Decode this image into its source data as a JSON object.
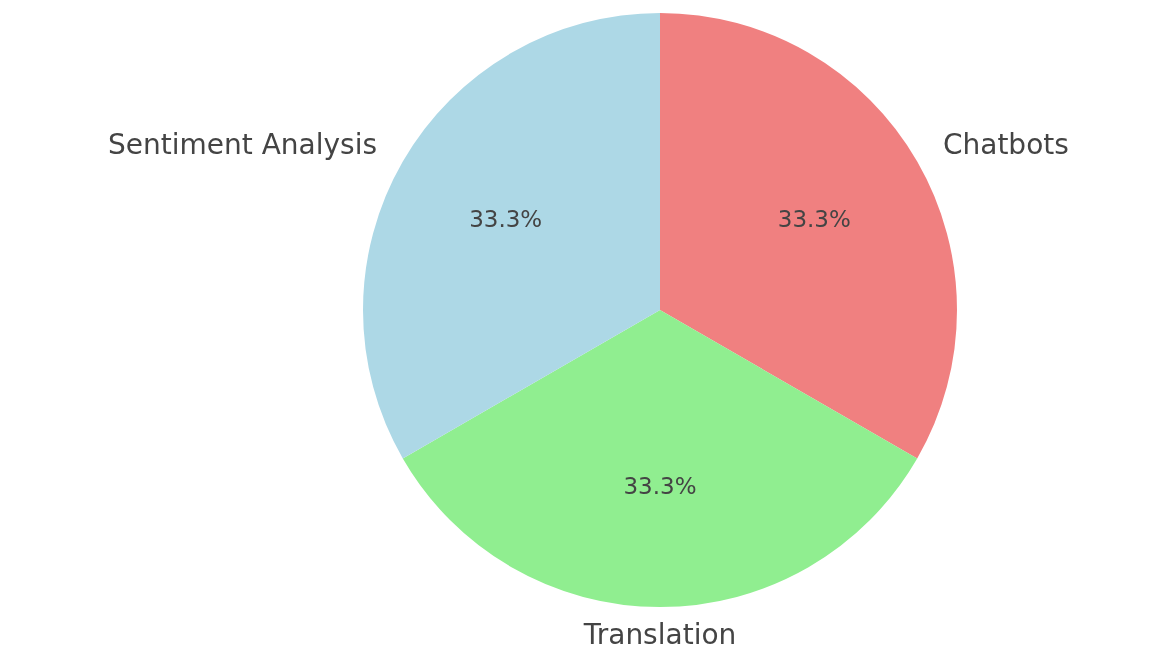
{
  "chart_data": {
    "type": "pie",
    "categories": [
      "Chatbots",
      "Translation",
      "Sentiment Analysis"
    ],
    "values": [
      33.3,
      33.3,
      33.3
    ],
    "colors": [
      "#f08080",
      "#90ee90",
      "#add8e6"
    ],
    "value_labels": [
      "33.3%",
      "33.3%",
      "33.3%"
    ],
    "legend": false
  }
}
